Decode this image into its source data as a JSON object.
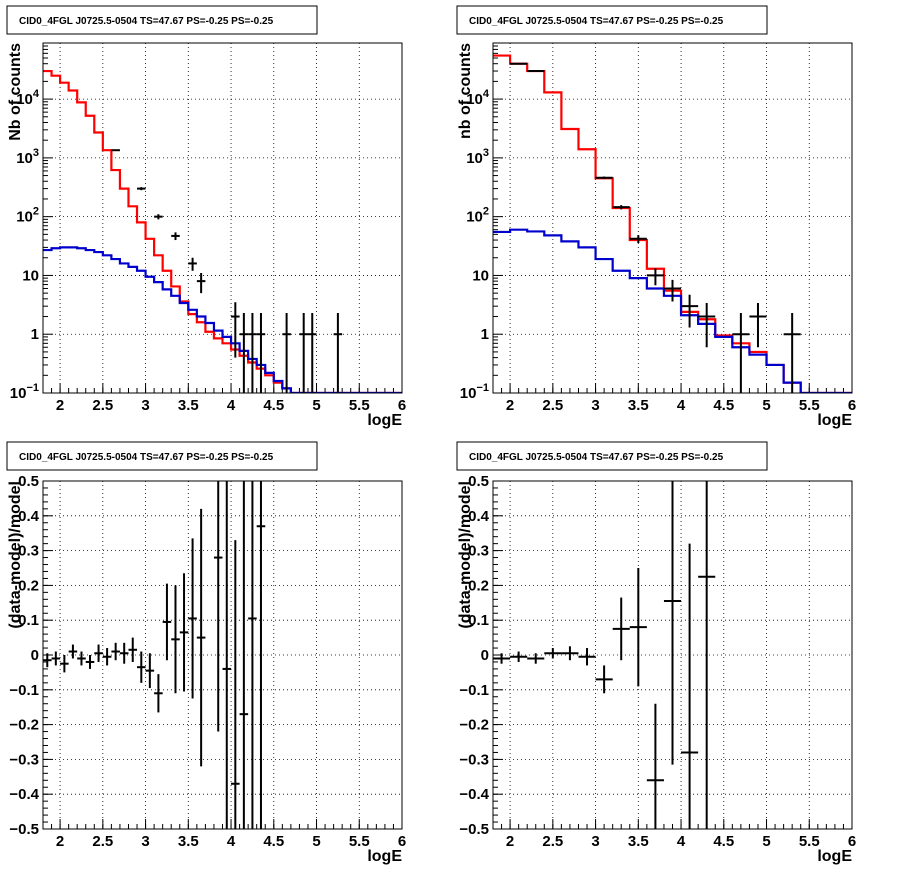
{
  "chart_data": [
    {
      "type": "line",
      "title": "CID0_4FGL J0725.5-0504 TS=47.67 PS=-0.25 PS=-0.25",
      "xlabel": "logE",
      "ylabel": "Nb of counts",
      "xlim": [
        1.8,
        6
      ],
      "ylim": [
        0.1,
        90000
      ],
      "yscale": "log",
      "grid": true,
      "x_ticks": [
        "2",
        "2.5",
        "3",
        "3.5",
        "4",
        "4.5",
        "5",
        "5.5",
        "6"
      ],
      "y_ticks": [
        {
          "v": 0.1,
          "m": "10",
          "e": "−1"
        },
        {
          "v": 1,
          "m": "1",
          "e": ""
        },
        {
          "v": 10,
          "m": "10",
          "e": ""
        },
        {
          "v": 100,
          "m": "10",
          "e": "2"
        },
        {
          "v": 1000,
          "m": "10",
          "e": "3"
        },
        {
          "v": 10000,
          "m": "10",
          "e": "4"
        }
      ],
      "bin_edges": [
        1.8,
        1.9,
        2.0,
        2.1,
        2.2,
        2.3,
        2.4,
        2.5,
        2.6,
        2.7,
        2.8,
        2.9,
        3.0,
        3.1,
        3.2,
        3.3,
        3.4,
        3.5,
        3.6,
        3.7,
        3.8,
        3.9,
        4.0,
        4.1,
        4.2,
        4.3,
        4.4,
        4.5,
        4.6,
        4.7,
        4.8,
        4.9,
        5.0,
        5.1,
        5.2,
        5.3,
        5.4,
        5.5,
        5.6,
        5.7,
        5.8,
        5.9,
        6.0
      ],
      "series": [
        {
          "color": "#ff0000",
          "style": "step",
          "values": [
            30000,
            25000,
            19000,
            14000,
            8800,
            5200,
            2700,
            1350,
            620,
            300,
            150,
            80,
            42,
            22,
            12,
            6.5,
            3.6,
            2.2,
            1.6,
            1.1,
            0.85,
            0.7,
            0.55,
            0.43,
            0.33,
            0.26,
            0.2,
            0.15,
            0.12,
            0.1,
            0.1,
            0.1,
            0.1,
            0.1,
            0.1,
            0.1,
            0.1,
            0.1,
            0.1,
            0.1,
            0.1,
            0.1
          ]
        },
        {
          "color": "#0000cc",
          "style": "step",
          "values": [
            27,
            29,
            30,
            30,
            29,
            27,
            25,
            22,
            19,
            16,
            14,
            12,
            9.5,
            7.7,
            5.8,
            4.5,
            3.4,
            2.6,
            2.0,
            1.55,
            1.15,
            0.9,
            0.7,
            0.52,
            0.38,
            0.3,
            0.22,
            0.16,
            0.12,
            0.1,
            0.1,
            0.1,
            0.1,
            0.1,
            0.1,
            0.1,
            0.1,
            0.1,
            0.1,
            0.1,
            0.1,
            0.1
          ]
        }
      ],
      "data_points": [
        {
          "x": 2.65,
          "y": 1350,
          "err": [
            40,
            40
          ]
        },
        {
          "x": 2.95,
          "y": 300,
          "err": [
            18,
            18
          ]
        },
        {
          "x": 3.15,
          "y": 100,
          "err": [
            10,
            10
          ]
        },
        {
          "x": 3.35,
          "y": 47,
          "err": [
            7,
            7
          ]
        },
        {
          "x": 3.55,
          "y": 16,
          "err": [
            4,
            4
          ]
        },
        {
          "x": 3.65,
          "y": 8,
          "err": [
            3,
            3
          ]
        },
        {
          "x": 4.05,
          "y": 2,
          "err": [
            1.6,
            1.5
          ]
        },
        {
          "x": 4.15,
          "y": 1,
          "err": [
            0.999,
            1.3
          ]
        },
        {
          "x": 4.25,
          "y": 1,
          "err": [
            0.999,
            1.3
          ]
        },
        {
          "x": 4.35,
          "y": 1,
          "err": [
            0.999,
            1.3
          ]
        },
        {
          "x": 4.65,
          "y": 1,
          "err": [
            0.999,
            1.3
          ]
        },
        {
          "x": 4.85,
          "y": 1,
          "err": [
            0.999,
            1.3
          ]
        },
        {
          "x": 4.95,
          "y": 1,
          "err": [
            0.999,
            1.3
          ]
        },
        {
          "x": 5.25,
          "y": 1,
          "err": [
            0.999,
            1.3
          ]
        }
      ]
    },
    {
      "type": "line",
      "title": "CID0_4FGL J0725.5-0504 TS=47.67 PS=-0.25 PS=-0.25",
      "xlabel": "logE",
      "ylabel": "nb of counts",
      "xlim": [
        1.8,
        6
      ],
      "ylim": [
        0.1,
        90000
      ],
      "yscale": "log",
      "grid": true,
      "x_ticks": [
        "2",
        "2.5",
        "3",
        "3.5",
        "4",
        "4.5",
        "5",
        "5.5",
        "6"
      ],
      "y_ticks": [
        {
          "v": 0.1,
          "m": "10",
          "e": "−1"
        },
        {
          "v": 1,
          "m": "1",
          "e": ""
        },
        {
          "v": 10,
          "m": "10",
          "e": ""
        },
        {
          "v": 100,
          "m": "10",
          "e": "2"
        },
        {
          "v": 1000,
          "m": "10",
          "e": "3"
        },
        {
          "v": 10000,
          "m": "10",
          "e": "4"
        }
      ],
      "bin_edges": [
        1.8,
        2.0,
        2.2,
        2.4,
        2.6,
        2.8,
        3.0,
        3.2,
        3.4,
        3.6,
        3.8,
        4.0,
        4.2,
        4.4,
        4.6,
        4.8,
        5.0,
        5.2,
        5.4,
        5.6,
        5.8,
        6.0
      ],
      "series": [
        {
          "color": "#ff0000",
          "style": "step",
          "values": [
            55000,
            40000,
            30000,
            13000,
            3100,
            1400,
            450,
            140,
            40,
            13,
            5.5,
            2.4,
            1.8,
            0.95,
            0.7,
            0.5,
            0.3,
            0.15,
            0.1,
            0.1,
            0.1
          ]
        },
        {
          "color": "#0000cc",
          "style": "step",
          "values": [
            55,
            60,
            56,
            48,
            38,
            30,
            19,
            12,
            9,
            6,
            4.5,
            2.1,
            1.5,
            0.9,
            0.6,
            0.45,
            0.3,
            0.15,
            0.1,
            0.1,
            0.1
          ]
        }
      ],
      "data_points": [
        {
          "x": 2.1,
          "y": 40000,
          "err": [
            200,
            200
          ]
        },
        {
          "x": 2.3,
          "y": 30000,
          "err": [
            170,
            170
          ]
        },
        {
          "x": 3.1,
          "y": 460,
          "err": [
            21,
            21
          ]
        },
        {
          "x": 3.3,
          "y": 145,
          "err": [
            12,
            12
          ]
        },
        {
          "x": 3.5,
          "y": 42,
          "err": [
            6.5,
            6.5
          ]
        },
        {
          "x": 3.7,
          "y": 10,
          "err": [
            3.2,
            3.2
          ]
        },
        {
          "x": 3.9,
          "y": 6,
          "err": [
            2.4,
            2.4
          ]
        },
        {
          "x": 4.1,
          "y": 3,
          "err": [
            1.7,
            1.7
          ]
        },
        {
          "x": 4.3,
          "y": 2,
          "err": [
            1.4,
            1.4
          ]
        },
        {
          "x": 4.7,
          "y": 1,
          "err": [
            0.999,
            1.3
          ]
        },
        {
          "x": 4.9,
          "y": 2,
          "err": [
            1.4,
            1.4
          ]
        },
        {
          "x": 5.3,
          "y": 1,
          "err": [
            0.999,
            1.3
          ]
        }
      ]
    },
    {
      "type": "scatter",
      "title": "CID0_4FGL J0725.5-0504 TS=47.67 PS=-0.25 PS=-0.25",
      "xlabel": "logE",
      "ylabel": "(data-model)/model",
      "xlim": [
        1.8,
        6
      ],
      "ylim": [
        -0.5,
        0.5
      ],
      "grid": true,
      "x_ticks": [
        "2",
        "2.5",
        "3",
        "3.5",
        "4",
        "4.5",
        "5",
        "5.5",
        "6"
      ],
      "y_ticks": [
        "−0.5",
        "−0.4",
        "−0.3",
        "−0.2",
        "−0.1",
        "0",
        "0.1",
        "0.2",
        "0.3",
        "0.4",
        "0.5"
      ],
      "bin_width": 0.1,
      "points": [
        {
          "x": 1.85,
          "y": -0.015,
          "e": 0.02
        },
        {
          "x": 1.95,
          "y": -0.01,
          "e": 0.02
        },
        {
          "x": 2.05,
          "y": -0.025,
          "e": 0.025
        },
        {
          "x": 2.15,
          "y": 0.01,
          "e": 0.02
        },
        {
          "x": 2.25,
          "y": -0.01,
          "e": 0.02
        },
        {
          "x": 2.35,
          "y": -0.02,
          "e": 0.02
        },
        {
          "x": 2.45,
          "y": 0.005,
          "e": 0.025
        },
        {
          "x": 2.55,
          "y": -0.005,
          "e": 0.025
        },
        {
          "x": 2.65,
          "y": 0.01,
          "e": 0.025
        },
        {
          "x": 2.75,
          "y": 0.005,
          "e": 0.03
        },
        {
          "x": 2.85,
          "y": 0.015,
          "e": 0.035
        },
        {
          "x": 2.95,
          "y": -0.035,
          "e": 0.045
        },
        {
          "x": 3.05,
          "y": -0.045,
          "e": 0.05
        },
        {
          "x": 3.15,
          "y": -0.11,
          "e": 0.055
        },
        {
          "x": 3.25,
          "y": 0.095,
          "e": 0.11
        },
        {
          "x": 3.35,
          "y": 0.045,
          "e": 0.155
        },
        {
          "x": 3.45,
          "y": 0.065,
          "e": 0.17
        },
        {
          "x": 3.55,
          "y": 0.105,
          "e": 0.23
        },
        {
          "x": 3.65,
          "y": 0.05,
          "e": 0.37
        },
        {
          "x": 3.85,
          "y": 0.28,
          "e": 0.5
        },
        {
          "x": 3.95,
          "y": -0.04,
          "e": 0.6
        },
        {
          "x": 4.05,
          "y": -0.37,
          "e": 0.7
        },
        {
          "x": 4.15,
          "y": -0.17,
          "e": 0.9
        },
        {
          "x": 4.25,
          "y": 0.105,
          "e": 0.9
        },
        {
          "x": 4.35,
          "y": 0.37,
          "e": 1.0
        }
      ]
    },
    {
      "type": "scatter",
      "title": "CID0_4FGL J0725.5-0504 TS=47.67 PS=-0.25 PS=-0.25",
      "xlabel": "logE",
      "ylabel": "(data-model)/model",
      "xlim": [
        1.8,
        6
      ],
      "ylim": [
        -0.5,
        0.5
      ],
      "grid": true,
      "x_ticks": [
        "2",
        "2.5",
        "3",
        "3.5",
        "4",
        "4.5",
        "5",
        "5.5",
        "6"
      ],
      "y_ticks": [
        "−0.5",
        "−0.4",
        "−0.3",
        "−0.2",
        "−0.1",
        "0",
        "0.1",
        "0.2",
        "0.3",
        "0.4",
        "0.5"
      ],
      "bin_width": 0.2,
      "points": [
        {
          "x": 1.9,
          "y": -0.01,
          "e": 0.015
        },
        {
          "x": 2.1,
          "y": -0.005,
          "e": 0.015
        },
        {
          "x": 2.3,
          "y": -0.01,
          "e": 0.015
        },
        {
          "x": 2.5,
          "y": 0.005,
          "e": 0.015
        },
        {
          "x": 2.7,
          "y": 0.005,
          "e": 0.02
        },
        {
          "x": 2.9,
          "y": -0.005,
          "e": 0.025
        },
        {
          "x": 3.1,
          "y": -0.07,
          "e": 0.04
        },
        {
          "x": 3.3,
          "y": 0.075,
          "e": 0.09
        },
        {
          "x": 3.5,
          "y": 0.08,
          "e": 0.17
        },
        {
          "x": 3.7,
          "y": -0.36,
          "e": 0.22
        },
        {
          "x": 3.9,
          "y": 0.155,
          "e": 0.47
        },
        {
          "x": 4.1,
          "y": -0.28,
          "e": 0.6
        },
        {
          "x": 4.3,
          "y": 0.225,
          "e": 0.8
        }
      ]
    }
  ]
}
